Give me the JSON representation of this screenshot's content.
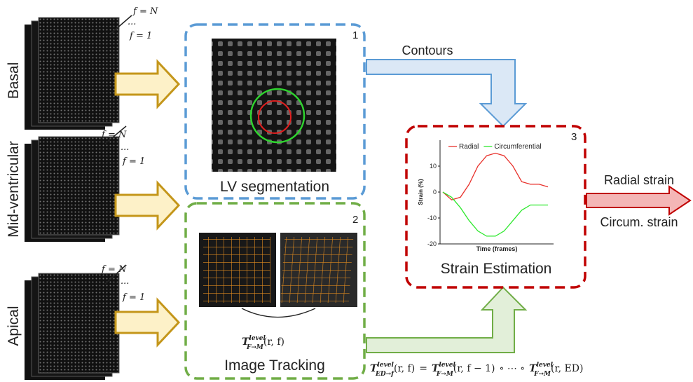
{
  "rows": [
    {
      "label": "Basal",
      "frames": {
        "last": "f = N",
        "dots": "...",
        "first": "f = 1"
      }
    },
    {
      "label": "Mid-ventricular",
      "frames": {
        "last": "f = N",
        "dots": "...",
        "first": "f = 1"
      }
    },
    {
      "label": "Apical",
      "frames": {
        "last": "f = N",
        "dots": "...",
        "first": "f = 1"
      }
    }
  ],
  "boxes": [
    {
      "number": "1",
      "title": "LV segmentation"
    },
    {
      "number": "2",
      "title": "Image Tracking"
    },
    {
      "number": "3",
      "title": "Strain Estimation"
    }
  ],
  "arrows": {
    "contours": "Contours",
    "outputs": [
      "Radial strain",
      "Circum. strain"
    ]
  },
  "formulas": {
    "transform": {
      "symbol": "T",
      "sup": "level",
      "sub": "F→M",
      "args": "(r, f)"
    },
    "composition": {
      "lhs": {
        "symbol": "T",
        "sup": "level",
        "sub": "ED→f",
        "args": "(r, f)"
      },
      "equals": "=",
      "first": {
        "symbol": "T",
        "sup": "level",
        "sub": "F→M",
        "args": "(r, f − 1)"
      },
      "compose": "∘ ⋯ ∘",
      "last": {
        "symbol": "T",
        "sup": "level",
        "sub": "F→M",
        "args": "(r, ED)"
      }
    }
  },
  "chart_data": {
    "type": "line",
    "ylabel": "Strain (%)",
    "xlabel": "Time (frames)",
    "ylim": [
      -20,
      20
    ],
    "yticks": [
      10,
      0,
      -10,
      -20
    ],
    "series": [
      {
        "name": "Radial",
        "color": "#e8312b",
        "values": [
          0,
          -3,
          -2,
          3,
          10,
          14,
          15,
          14,
          10,
          4,
          3,
          3,
          2
        ]
      },
      {
        "name": "Circumferential",
        "color": "#2ee82e",
        "values": [
          0,
          -2,
          -6,
          -11,
          -15,
          -17,
          -17,
          -15,
          -11,
          -7,
          -5,
          -5,
          -5
        ]
      }
    ]
  }
}
